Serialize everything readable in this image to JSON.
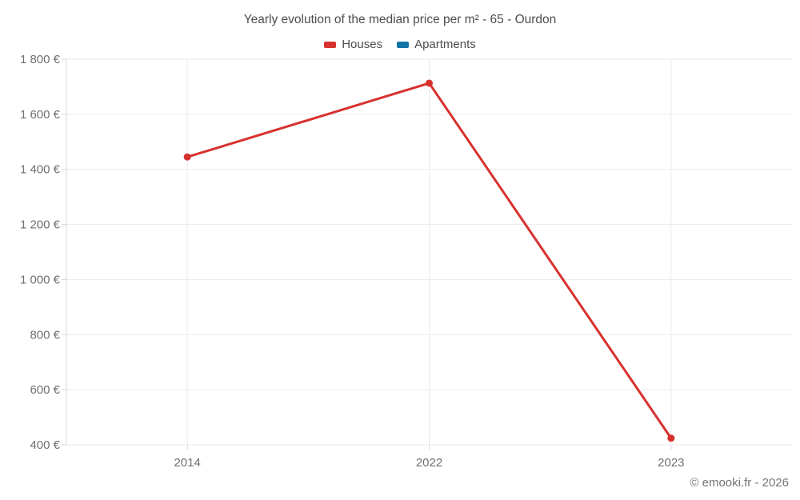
{
  "header": {
    "title": "Yearly evolution of the median price per m² - 65 - Ourdon"
  },
  "footer": {
    "text": "© emooki.fr - 2026"
  },
  "colors": {
    "houses": "#d7312e",
    "apartments": "#1274a5",
    "grid": "#ebebeb",
    "axis": "#d8d8d8",
    "tick_label": "#6f6f6f",
    "title_text": "#4d4d4d",
    "footer_text": "#757575",
    "background": "#ffffff"
  },
  "chart_data": {
    "type": "line",
    "title": "Yearly evolution of the median price per m² - 65 - Ourdon",
    "categories": [
      "2014",
      "2022",
      "2023"
    ],
    "series": [
      {
        "name": "Houses",
        "color": "#d7312e",
        "values": [
          1445,
          1713,
          424
        ]
      },
      {
        "name": "Apartments",
        "color": "#1274a5",
        "values": []
      }
    ],
    "xlabel": "",
    "ylabel": "",
    "ylim": [
      400,
      1800
    ],
    "y_tick_step": 200,
    "y_tick_labels": [
      "400 €",
      "600 €",
      "800 €",
      "1 000 €",
      "1 200 €",
      "1 400 €",
      "1 600 €",
      "1 800 €"
    ],
    "grid": true,
    "legend_position": "top",
    "marker": "circle"
  }
}
